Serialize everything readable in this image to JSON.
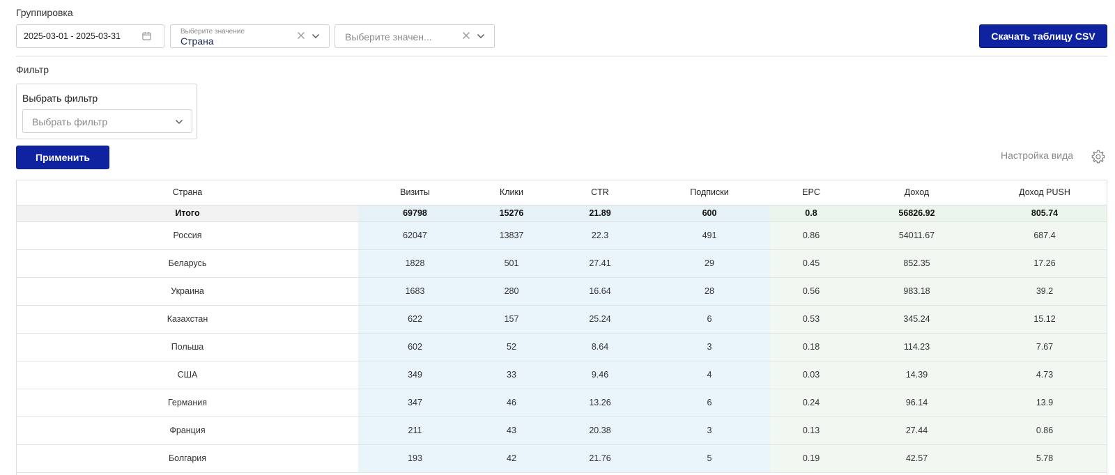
{
  "grouping": {
    "label": "Группировка",
    "date_range": "2025-03-01 - 2025-03-31",
    "select1": {
      "mini_label": "Выберите значение",
      "value": "Страна"
    },
    "select2": {
      "placeholder": "Выберите значен..."
    }
  },
  "toolbar": {
    "csv_label": "Скачать таблицу CSV"
  },
  "filter": {
    "section_label": "Фильтр",
    "box_title": "Выбрать фильтр",
    "select_placeholder": "Выбрать фильтр",
    "apply_label": "Применить"
  },
  "view_settings_label": "Настройка вида",
  "table": {
    "headers": [
      "Страна",
      "Визиты",
      "Клики",
      "CTR",
      "Подписки",
      "EPC",
      "Доход",
      "Доход PUSH"
    ],
    "total": [
      "Итого",
      "69798",
      "15276",
      "21.89",
      "600",
      "0.8",
      "56826.92",
      "805.74"
    ],
    "rows": [
      [
        "Россия",
        "62047",
        "13837",
        "22.3",
        "491",
        "0.86",
        "54011.67",
        "687.4"
      ],
      [
        "Беларусь",
        "1828",
        "501",
        "27.41",
        "29",
        "0.45",
        "852.35",
        "17.26"
      ],
      [
        "Украина",
        "1683",
        "280",
        "16.64",
        "28",
        "0.56",
        "983.18",
        "39.2"
      ],
      [
        "Казахстан",
        "622",
        "157",
        "25.24",
        "6",
        "0.53",
        "345.24",
        "15.12"
      ],
      [
        "Польша",
        "602",
        "52",
        "8.64",
        "3",
        "0.18",
        "114.23",
        "7.67"
      ],
      [
        "США",
        "349",
        "33",
        "9.46",
        "4",
        "0.03",
        "14.39",
        "4.73"
      ],
      [
        "Германия",
        "347",
        "46",
        "13.26",
        "6",
        "0.24",
        "96.14",
        "13.9"
      ],
      [
        "Франция",
        "211",
        "43",
        "20.38",
        "3",
        "0.13",
        "27.44",
        "0.86"
      ],
      [
        "Болгария",
        "193",
        "42",
        "21.76",
        "5",
        "0.19",
        "42.57",
        "5.78"
      ]
    ]
  },
  "colors": {
    "accent": "#0f23a0",
    "metrics_blue": "#eaf4fb",
    "money_green": "#f1f8f1"
  }
}
